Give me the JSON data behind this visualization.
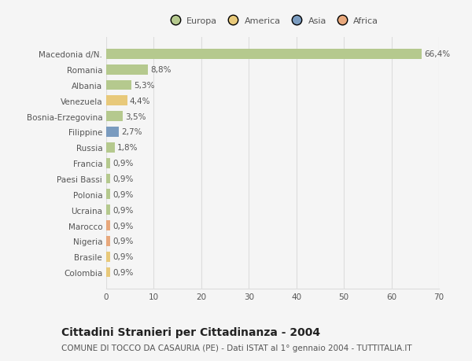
{
  "categories": [
    "Colombia",
    "Brasile",
    "Nigeria",
    "Marocco",
    "Ucraina",
    "Polonia",
    "Paesi Bassi",
    "Francia",
    "Russia",
    "Filippine",
    "Bosnia-Erzegovina",
    "Venezuela",
    "Albania",
    "Romania",
    "Macedonia d/N."
  ],
  "values": [
    0.9,
    0.9,
    0.9,
    0.9,
    0.9,
    0.9,
    0.9,
    0.9,
    1.8,
    2.7,
    3.5,
    4.4,
    5.3,
    8.8,
    66.4
  ],
  "colors": [
    "#e8c97a",
    "#e8c97a",
    "#e8a87c",
    "#e8a87c",
    "#b5c98e",
    "#b5c98e",
    "#b5c98e",
    "#b5c98e",
    "#b5c98e",
    "#7a9bbf",
    "#b5c98e",
    "#e8c97a",
    "#b5c98e",
    "#b5c98e",
    "#b5c98e"
  ],
  "labels": [
    "0,9%",
    "0,9%",
    "0,9%",
    "0,9%",
    "0,9%",
    "0,9%",
    "0,9%",
    "0,9%",
    "1,8%",
    "2,7%",
    "3,5%",
    "4,4%",
    "5,3%",
    "8,8%",
    "66,4%"
  ],
  "legend": {
    "Europa": "#b5c98e",
    "America": "#e8c97a",
    "Asia": "#7a9bbf",
    "Africa": "#e8a87c"
  },
  "xlim": [
    0,
    70
  ],
  "xticks": [
    0,
    10,
    20,
    30,
    40,
    50,
    60,
    70
  ],
  "title": "Cittadini Stranieri per Cittadinanza - 2004",
  "subtitle": "COMUNE DI TOCCO DA CASAURIA (PE) - Dati ISTAT al 1° gennaio 2004 - TUTTITALIA.IT",
  "bg_color": "#f5f5f5",
  "grid_color": "#dddddd",
  "bar_height": 0.65,
  "title_fontsize": 10,
  "subtitle_fontsize": 7.5,
  "tick_fontsize": 7.5,
  "label_fontsize": 7.5,
  "legend_fontsize": 8
}
